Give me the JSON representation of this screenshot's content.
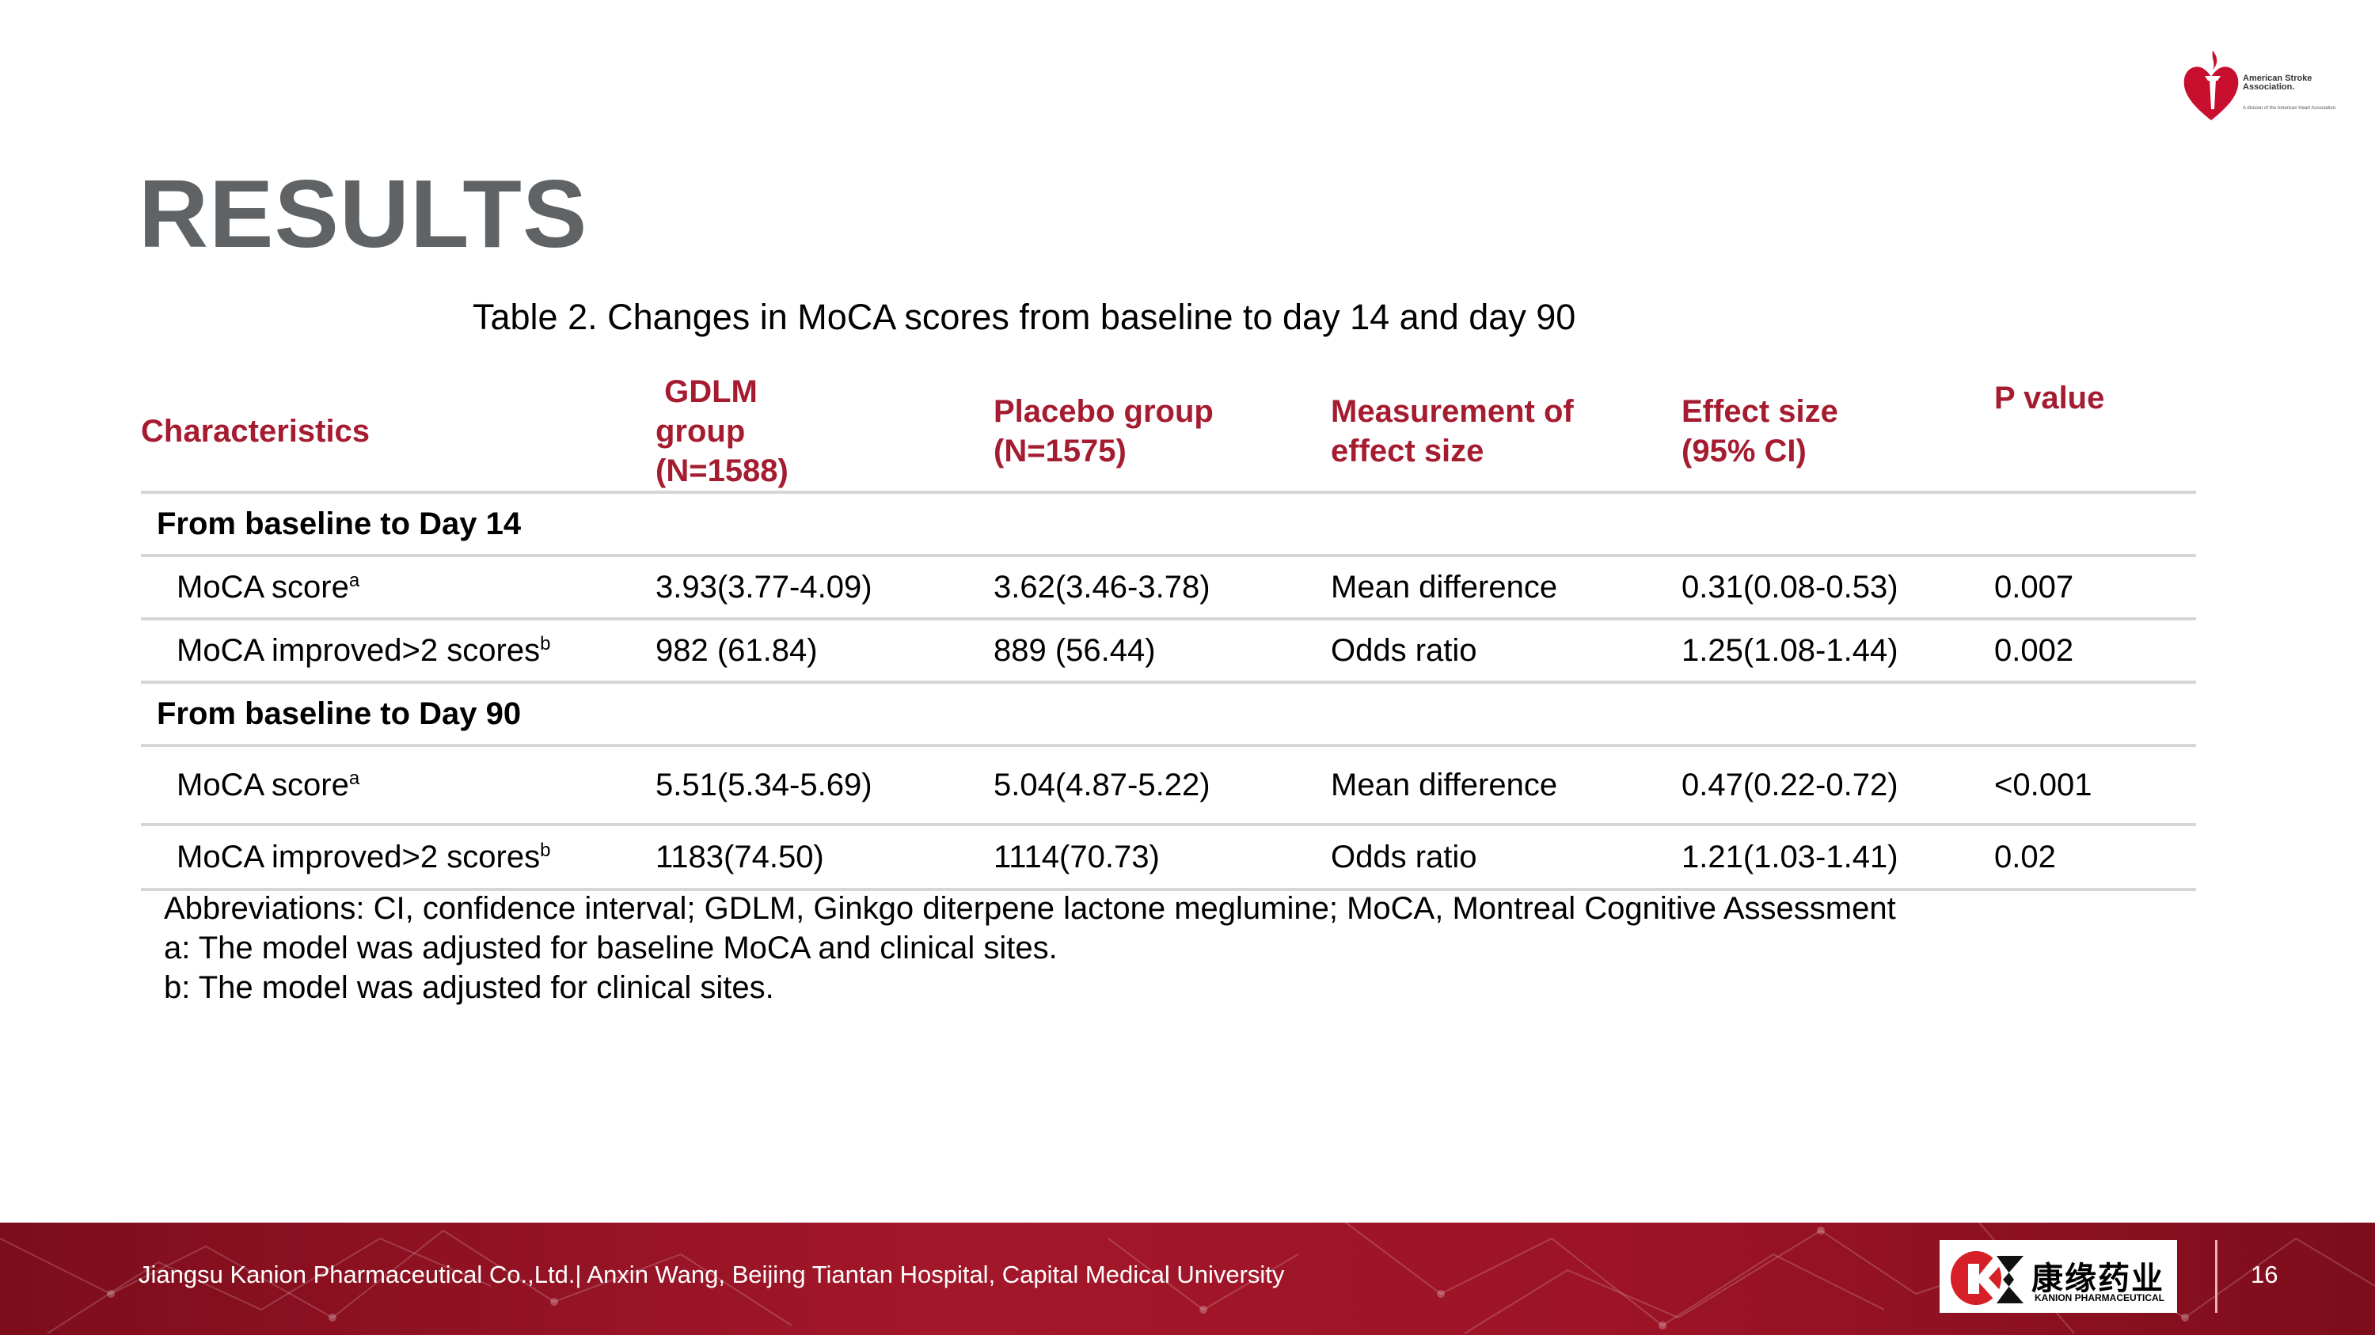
{
  "logo": {
    "name": "American Stroke Association.",
    "sub": "A division of the American Heart Association.",
    "color": "#c8102e"
  },
  "title": "RESULTS",
  "table": {
    "caption": "Table 2. Changes in MoCA scores from baseline to day 14 and day 90",
    "headers": [
      "Characteristics",
      " GDLM group (N=1588)",
      "Placebo group (N=1575)",
      "Measurement of effect size",
      "Effect size (95% CI)",
      "P value"
    ],
    "sections": [
      {
        "label": "From baseline to Day 14",
        "rows": [
          {
            "label": "MoCA score",
            "sup": "a",
            "gdlm": "3.93(3.77-4.09)",
            "placebo": "3.62(3.46-3.78)",
            "measure": "Mean difference",
            "effect": "0.31(0.08-0.53)",
            "p": "0.007"
          },
          {
            "label": "MoCA improved>2 scores",
            "sup": "b",
            "gdlm": "982 (61.84)",
            "placebo": "889 (56.44)",
            "measure": "Odds ratio",
            "effect": "1.25(1.08-1.44)",
            "p": "0.002"
          }
        ]
      },
      {
        "label": "From baseline to Day 90",
        "rows": [
          {
            "label": "MoCA score",
            "sup": "a",
            "gdlm": "5.51(5.34-5.69)",
            "placebo": "5.04(4.87-5.22)",
            "measure": "Mean difference",
            "effect": "0.47(0.22-0.72)",
            "p": "<0.001"
          },
          {
            "label": "MoCA improved>2 scores",
            "sup": "b",
            "gdlm": "1183(74.50)",
            "placebo": "1114(70.73)",
            "measure": "Odds ratio",
            "effect": "1.21(1.03-1.41)",
            "p": "0.02"
          }
        ]
      }
    ]
  },
  "notes": [
    "Abbreviations: CI, confidence interval; GDLM, Ginkgo diterpene lactone meglumine; MoCA, Montreal Cognitive Assessment",
    "a: The model was adjusted for baseline MoCA and clinical sites.",
    "b: The model was adjusted for clinical sites."
  ],
  "footer": {
    "text": "Jiangsu Kanion Pharmaceutical Co.,Ltd.| Anxin Wang, Beijing Tiantan Hospital, Capital Medical University",
    "company_logo_cn": "康缘药业",
    "company_logo_en": "KANION PHARMACEUTICAL",
    "page_number": "16",
    "band_color": "#9b1426"
  }
}
